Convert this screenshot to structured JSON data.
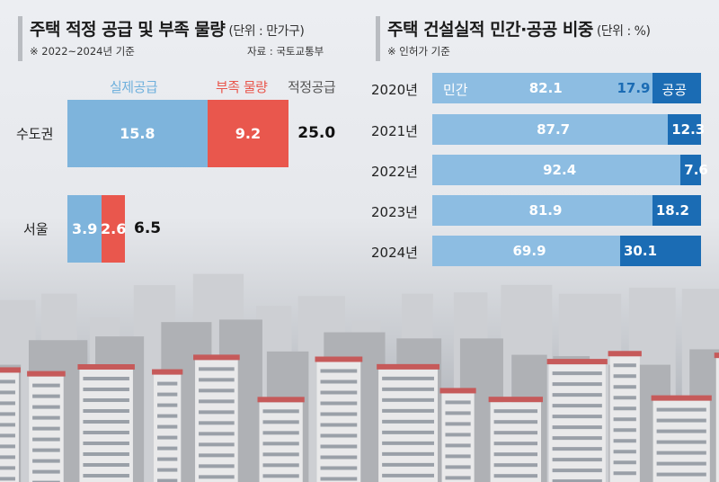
{
  "left": {
    "title": "주택 적정 공급 및 부족 물량",
    "unit": "(단위 : 만가구)",
    "note": "※ 2022~2024년 기준",
    "source": "자료 : 국토교통부",
    "legend": [
      "실제공급",
      "부족 물량",
      "적정공급"
    ]
  },
  "right": {
    "title": "주택 건설실적 민간·공공 비중",
    "unit": "(단위 : %)",
    "note": "※ 인허가 기준",
    "private_label": "민간",
    "public_label": "공공"
  },
  "colors": {
    "actual": "#7eb4dc",
    "shortage": "#e9574d",
    "private": "#8dbde2",
    "public": "#1b6cb4"
  },
  "chart_data": [
    {
      "type": "bar",
      "stacked": true,
      "orientation": "horizontal",
      "title": "주택 적정 공급 및 부족 물량",
      "categories": [
        "수도권",
        "서울"
      ],
      "series": [
        {
          "name": "실제공급",
          "values": [
            15.8,
            3.9
          ]
        },
        {
          "name": "부족 물량",
          "values": [
            9.2,
            2.6
          ]
        }
      ],
      "totals_label": "적정공급",
      "totals": [
        "25.0",
        "6.5"
      ],
      "actual_labels": [
        "15.8",
        "3.9"
      ],
      "shortage_labels": [
        "9.2",
        "2.6"
      ]
    },
    {
      "type": "bar",
      "stacked": true,
      "orientation": "horizontal",
      "title": "주택 건설실적 민간·공공 비중",
      "categories": [
        "2020년",
        "2021년",
        "2022년",
        "2023년",
        "2024년"
      ],
      "series": [
        {
          "name": "민간",
          "values": [
            82.1,
            87.7,
            92.4,
            81.9,
            69.9
          ]
        },
        {
          "name": "공공",
          "values": [
            17.9,
            12.3,
            7.6,
            18.2,
            30.1
          ]
        }
      ],
      "private_labels": [
        "82.1",
        "87.7",
        "92.4",
        "81.9",
        "69.9"
      ],
      "public_labels": [
        "17.9",
        "12.3",
        "7.6",
        "18.2",
        "30.1"
      ],
      "xlim": [
        0,
        100
      ]
    }
  ]
}
